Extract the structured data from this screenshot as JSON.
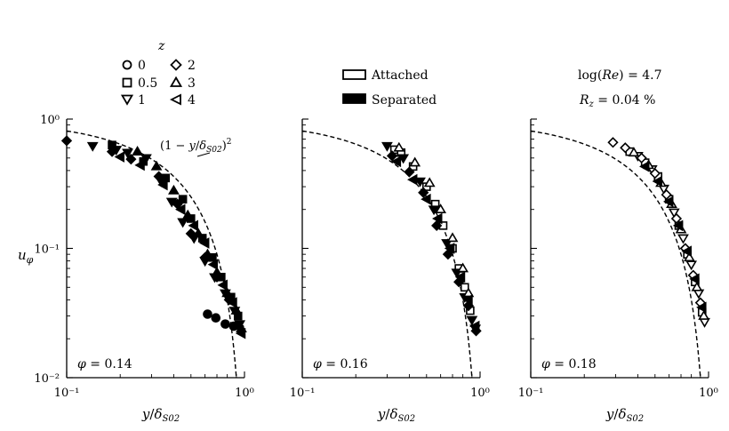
{
  "legend_z": {
    "title": "z",
    "entries": [
      {
        "label": "0",
        "marker": "circle"
      },
      {
        "label": "0.5",
        "marker": "square"
      },
      {
        "label": "1",
        "marker": "triangle-down"
      },
      {
        "label": "2",
        "marker": "diamond"
      },
      {
        "label": "3",
        "marker": "triangle-up"
      },
      {
        "label": "4",
        "marker": "triangle-left"
      }
    ]
  },
  "legend_state": {
    "attached_label": "Attached",
    "separated_label": "Separated"
  },
  "conditions": {
    "re_label": "log(Re) = 4.7",
    "rz_label": "Rz = 0.04 %"
  },
  "chart_data": [
    {
      "type": "scatter",
      "panel_label": "φ = 0.14",
      "curve_label": "(1 − y/δS02)²",
      "xlabel": "y/δS02",
      "ylabel": "uφ",
      "xscale": "log",
      "yscale": "log",
      "xlim": [
        0.1,
        1.0
      ],
      "ylim": [
        0.01,
        1.0
      ],
      "xticks": [
        "10⁻¹",
        "10⁰"
      ],
      "yticks": [
        "10⁻²",
        "10⁻¹",
        "10⁰"
      ],
      "reference_curve": "(1 - x)^2",
      "series": [
        {
          "name": "0",
          "marker": "circle",
          "fill": "filled",
          "points": [
            [
              0.62,
              0.031
            ],
            [
              0.69,
              0.029
            ],
            [
              0.78,
              0.026
            ],
            [
              0.87,
              0.025
            ]
          ]
        },
        {
          "name": "0.5",
          "marker": "square",
          "fill": "filled",
          "points": [
            [
              0.18,
              0.63
            ],
            [
              0.27,
              0.47
            ],
            [
              0.36,
              0.35
            ],
            [
              0.45,
              0.24
            ],
            [
              0.5,
              0.17
            ],
            [
              0.58,
              0.12
            ],
            [
              0.66,
              0.085
            ],
            [
              0.74,
              0.06
            ],
            [
              0.84,
              0.042
            ],
            [
              0.92,
              0.03
            ]
          ]
        },
        {
          "name": "1",
          "marker": "triangle-down",
          "fill": "filled",
          "points": [
            [
              0.14,
              0.62
            ],
            [
              0.19,
              0.58
            ],
            [
              0.22,
              0.55
            ],
            [
              0.28,
              0.5
            ],
            [
              0.34,
              0.33
            ],
            [
              0.39,
              0.23
            ],
            [
              0.45,
              0.16
            ],
            [
              0.52,
              0.12
            ],
            [
              0.6,
              0.08
            ],
            [
              0.68,
              0.06
            ],
            [
              0.78,
              0.045
            ],
            [
              0.88,
              0.033
            ],
            [
              0.94,
              0.026
            ]
          ]
        },
        {
          "name": "2",
          "marker": "diamond",
          "fill": "filled",
          "points": [
            [
              0.1,
              0.68
            ],
            [
              0.18,
              0.56
            ],
            [
              0.23,
              0.49
            ],
            [
              0.33,
              0.36
            ],
            [
              0.42,
              0.22
            ],
            [
              0.5,
              0.13
            ],
            [
              0.6,
              0.085
            ],
            [
              0.7,
              0.06
            ],
            [
              0.82,
              0.04
            ],
            [
              0.93,
              0.025
            ]
          ]
        },
        {
          "name": "3",
          "marker": "triangle-up",
          "fill": "filled",
          "points": [
            [
              0.25,
              0.56
            ],
            [
              0.32,
              0.43
            ],
            [
              0.4,
              0.28
            ],
            [
              0.48,
              0.18
            ],
            [
              0.55,
              0.13
            ],
            [
              0.62,
              0.09
            ],
            [
              0.7,
              0.065
            ],
            [
              0.8,
              0.045
            ],
            [
              0.9,
              0.033
            ],
            [
              0.96,
              0.024
            ]
          ]
        },
        {
          "name": "4",
          "marker": "triangle-left",
          "fill": "filled",
          "points": [
            [
              0.2,
              0.51
            ],
            [
              0.26,
              0.44
            ],
            [
              0.35,
              0.31
            ],
            [
              0.44,
              0.2
            ],
            [
              0.52,
              0.15
            ],
            [
              0.6,
              0.11
            ],
            [
              0.67,
              0.075
            ],
            [
              0.76,
              0.052
            ],
            [
              0.86,
              0.038
            ],
            [
              0.96,
              0.022
            ]
          ]
        }
      ]
    },
    {
      "type": "scatter",
      "panel_label": "φ = 0.16",
      "xlabel": "y/δS02",
      "xscale": "log",
      "yscale": "log",
      "xlim": [
        0.1,
        1.0
      ],
      "ylim": [
        0.01,
        1.0
      ],
      "xticks": [
        "10⁻¹",
        "10⁰"
      ],
      "reference_curve": "(1 - x)^2",
      "series": [
        {
          "name": "0.5",
          "marker": "square",
          "fill": "open",
          "points": [
            [
              0.33,
              0.58
            ],
            [
              0.36,
              0.55
            ],
            [
              0.42,
              0.43
            ],
            [
              0.5,
              0.3
            ],
            [
              0.56,
              0.22
            ],
            [
              0.62,
              0.15
            ],
            [
              0.7,
              0.1
            ],
            [
              0.76,
              0.07
            ],
            [
              0.82,
              0.05
            ],
            [
              0.88,
              0.033
            ]
          ]
        },
        {
          "name": "1",
          "marker": "triangle-down",
          "fill": "filled",
          "points": [
            [
              0.3,
              0.62
            ],
            [
              0.37,
              0.5
            ],
            [
              0.46,
              0.33
            ],
            [
              0.55,
              0.2
            ],
            [
              0.65,
              0.11
            ],
            [
              0.74,
              0.065
            ],
            [
              0.82,
              0.042
            ],
            [
              0.9,
              0.028
            ],
            [
              0.94,
              0.024
            ]
          ]
        },
        {
          "name": "2",
          "marker": "diamond",
          "fill": "filled",
          "points": [
            [
              0.32,
              0.52
            ],
            [
              0.4,
              0.39
            ],
            [
              0.48,
              0.27
            ],
            [
              0.57,
              0.15
            ],
            [
              0.66,
              0.09
            ],
            [
              0.76,
              0.055
            ],
            [
              0.86,
              0.036
            ],
            [
              0.95,
              0.023
            ]
          ]
        },
        {
          "name": "3",
          "marker": "triangle-up",
          "fill": "open",
          "points": [
            [
              0.35,
              0.6
            ],
            [
              0.43,
              0.46
            ],
            [
              0.52,
              0.32
            ],
            [
              0.6,
              0.2
            ],
            [
              0.7,
              0.12
            ],
            [
              0.8,
              0.07
            ],
            [
              0.86,
              0.045
            ]
          ]
        },
        {
          "name": "4",
          "marker": "triangle-left",
          "fill": "filled",
          "points": [
            [
              0.34,
              0.47
            ],
            [
              0.42,
              0.34
            ],
            [
              0.5,
              0.24
            ],
            [
              0.58,
              0.17
            ],
            [
              0.68,
              0.1
            ],
            [
              0.78,
              0.06
            ],
            [
              0.86,
              0.04
            ],
            [
              0.94,
              0.025
            ]
          ]
        }
      ]
    },
    {
      "type": "scatter",
      "panel_label": "φ = 0.18",
      "xlabel": "y/δS02",
      "xscale": "log",
      "yscale": "log",
      "xlim": [
        0.1,
        1.0
      ],
      "ylim": [
        0.01,
        1.0
      ],
      "xticks": [
        "10⁻¹",
        "10⁰"
      ],
      "reference_curve": "(1 - x)^2",
      "series": [
        {
          "name": "0.5",
          "marker": "square",
          "fill": "open",
          "points": [
            [
              0.36,
              0.56
            ],
            [
              0.44,
              0.46
            ],
            [
              0.52,
              0.36
            ],
            [
              0.6,
              0.24
            ],
            [
              0.68,
              0.15
            ],
            [
              0.76,
              0.09
            ],
            [
              0.84,
              0.055
            ],
            [
              0.92,
              0.032
            ]
          ]
        },
        {
          "name": "1",
          "marker": "triangle-down",
          "fill": "open",
          "points": [
            [
              0.4,
              0.52
            ],
            [
              0.48,
              0.41
            ],
            [
              0.56,
              0.29
            ],
            [
              0.64,
              0.19
            ],
            [
              0.72,
              0.12
            ],
            [
              0.8,
              0.075
            ],
            [
              0.88,
              0.045
            ],
            [
              0.95,
              0.027
            ]
          ]
        },
        {
          "name": "2",
          "marker": "diamond",
          "fill": "open",
          "points": [
            [
              0.29,
              0.66
            ],
            [
              0.34,
              0.6
            ],
            [
              0.42,
              0.5
            ],
            [
              0.5,
              0.38
            ],
            [
              0.58,
              0.26
            ],
            [
              0.66,
              0.17
            ],
            [
              0.74,
              0.1
            ],
            [
              0.82,
              0.062
            ],
            [
              0.9,
              0.038
            ]
          ]
        },
        {
          "name": "3",
          "marker": "triangle-up",
          "fill": "open",
          "points": [
            [
              0.38,
              0.55
            ],
            [
              0.46,
              0.44
            ],
            [
              0.54,
              0.32
            ],
            [
              0.62,
              0.22
            ],
            [
              0.7,
              0.14
            ],
            [
              0.78,
              0.085
            ],
            [
              0.86,
              0.05
            ],
            [
              0.94,
              0.03
            ]
          ]
        },
        {
          "name": "4",
          "marker": "triangle-left",
          "fill": "filled",
          "points": [
            [
              0.44,
              0.43
            ],
            [
              0.52,
              0.33
            ],
            [
              0.6,
              0.23
            ],
            [
              0.68,
              0.15
            ],
            [
              0.76,
              0.095
            ],
            [
              0.84,
              0.058
            ],
            [
              0.92,
              0.035
            ]
          ]
        }
      ]
    }
  ]
}
